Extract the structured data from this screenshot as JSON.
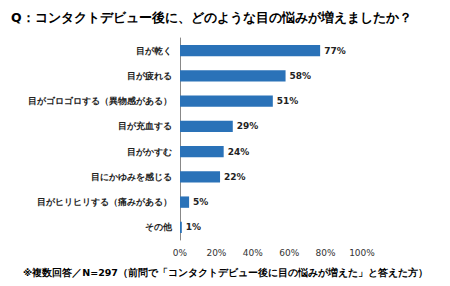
{
  "chart_data": {
    "type": "bar",
    "orientation": "horizontal",
    "title": "Q：コンタクトデビュー後に、どのような目の悩みが増えましたか？",
    "annotation": "※複数回答／N=297（前問で「コンタクトデビュー後に目の悩みが増えた」と答えた方）",
    "categories": [
      "目が乾く",
      "目が疲れる",
      "目がゴロゴロする（異物感がある）",
      "目が充血する",
      "目がかすむ",
      "目にかゆみを感じる",
      "目がヒリヒリする（痛みがある）",
      "その他"
    ],
    "values": [
      77,
      58,
      51,
      29,
      24,
      22,
      5,
      1
    ],
    "value_labels": [
      "77%",
      "58%",
      "51%",
      "29%",
      "24%",
      "22%",
      "5%",
      "1%"
    ],
    "data_labels": true,
    "color": "#2a72b8",
    "xlim": [
      0,
      100
    ],
    "xticks": [
      {
        "value": 0,
        "label": "0%"
      },
      {
        "value": 20,
        "label": "20%"
      },
      {
        "value": 40,
        "label": "40%"
      },
      {
        "value": 60,
        "label": "60%"
      },
      {
        "value": 80,
        "label": "80%"
      },
      {
        "value": 100,
        "label": "100%"
      }
    ],
    "grid": false
  }
}
